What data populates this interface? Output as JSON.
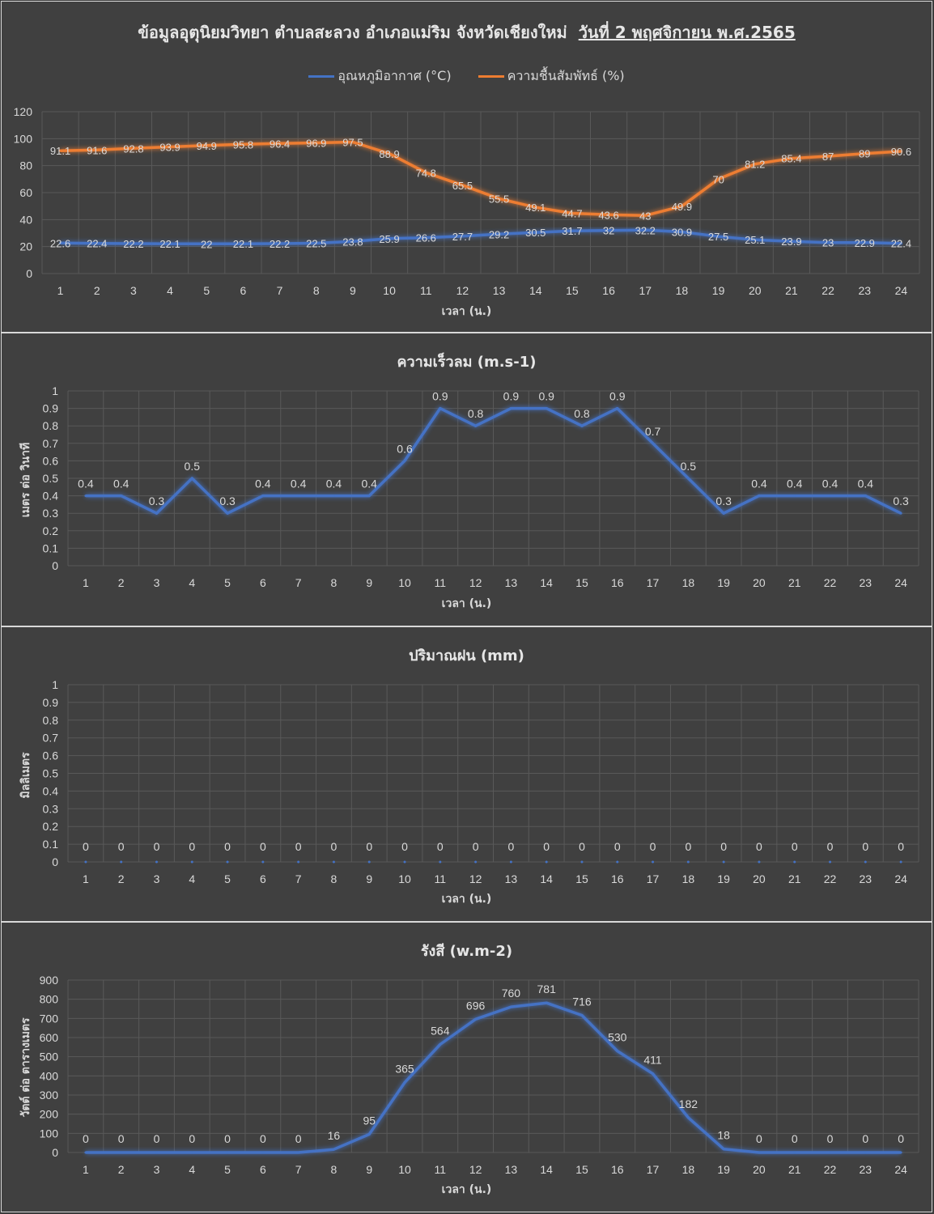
{
  "colors": {
    "background": "#404040",
    "grid": "#595959",
    "text": "#d9d9d9",
    "blue": "#4472c4",
    "orange": "#ed7d31"
  },
  "chart_data": [
    {
      "type": "line",
      "title": "ข้อมูลอุตุนิยมวิทยา  ตำบลสะลวง  อำเภอแม่ริม  จังหวัดเชียงใหม่",
      "title_date": "วันที่ 2 พฤศจิกายน พ.ศ.2565",
      "xlabel": "เวลา (น.)",
      "ylabel": "",
      "ylim": [
        0,
        120
      ],
      "yticks": [
        0,
        20,
        40,
        60,
        80,
        100,
        120
      ],
      "x": [
        1,
        2,
        3,
        4,
        5,
        6,
        7,
        8,
        9,
        10,
        11,
        12,
        13,
        14,
        15,
        16,
        17,
        18,
        19,
        20,
        21,
        22,
        23,
        24
      ],
      "legend": "top",
      "grid": true,
      "series": [
        {
          "name": "อุณหภูมิอากาศ (°C)",
          "color": "#4472c4",
          "values": [
            22.6,
            22.4,
            22.2,
            22.1,
            22,
            22.1,
            22.2,
            22.5,
            23.8,
            25.9,
            26.6,
            27.7,
            29.2,
            30.5,
            31.7,
            32,
            32.2,
            30.9,
            27.5,
            25.1,
            23.9,
            23,
            22.9,
            22.4
          ],
          "labels": [
            "22.6",
            "22.4",
            "22.2",
            "22.1",
            "22",
            "22.1",
            "22.2",
            "22.5",
            "23.8",
            "25.9",
            "26.6",
            "27.7",
            "29.2",
            "30.5",
            "31.7",
            "32",
            "32.2",
            "30.9",
            "27.5",
            "25.1",
            "23.9",
            "23",
            "22.9",
            "22.4"
          ]
        },
        {
          "name": "ความชื้นสัมพัทธ์ (%)",
          "color": "#ed7d31",
          "values": [
            91.1,
            91.6,
            92.8,
            93.9,
            94.9,
            95.8,
            96.4,
            96.9,
            97.5,
            88.9,
            74.8,
            65.5,
            55.5,
            49.1,
            44.7,
            43.6,
            43,
            49.9,
            70,
            81.2,
            85.4,
            87,
            89,
            90.6
          ],
          "labels": [
            "91.1",
            "91.6",
            "92.8",
            "93.9",
            "94.9",
            "95.8",
            "96.4",
            "96.9",
            "97.5",
            "88.9",
            "74.8",
            "65.5",
            "55.5",
            "49.1",
            "44.7",
            "43.6",
            "43",
            "49.9",
            "70",
            "81.2",
            "85.4",
            "87",
            "89",
            "90.6"
          ]
        }
      ]
    },
    {
      "type": "line",
      "title": "ความเร็วลม (m.s-1)",
      "xlabel": "เวลา (น.)",
      "ylabel": "เมตร ต่อ วินาที",
      "ylim": [
        0,
        1
      ],
      "yticks": [
        "0",
        "0.1",
        "0.2",
        "0.3",
        "0.4",
        "0.5",
        "0.6",
        "0.7",
        "0.8",
        "0.9",
        "1"
      ],
      "x": [
        1,
        2,
        3,
        4,
        5,
        6,
        7,
        8,
        9,
        10,
        11,
        12,
        13,
        14,
        15,
        16,
        17,
        18,
        19,
        20,
        21,
        22,
        23,
        24
      ],
      "grid": true,
      "series": [
        {
          "color": "#4472c4",
          "values": [
            0.4,
            0.4,
            0.3,
            0.5,
            0.3,
            0.4,
            0.4,
            0.4,
            0.4,
            0.6,
            0.9,
            0.8,
            0.9,
            0.9,
            0.8,
            0.9,
            0.7,
            0.5,
            0.3,
            0.4,
            0.4,
            0.4,
            0.4,
            0.3
          ],
          "labels": [
            "0.4",
            "0.4",
            "0.3",
            "0.5",
            "0.3",
            "0.4",
            "0.4",
            "0.4",
            "0.4",
            "0.6",
            "0.9",
            "0.8",
            "0.9",
            "0.9",
            "0.8",
            "0.9",
            "0.7",
            "0.5",
            "0.3",
            "0.4",
            "0.4",
            "0.4",
            "0.4",
            "0.3"
          ]
        }
      ]
    },
    {
      "type": "line",
      "title": "ปริมาณฝน (mm)",
      "xlabel": "เวลา (น.)",
      "ylabel": "มิลลิเมตร",
      "ylim": [
        0,
        1
      ],
      "yticks": [
        "0",
        "0.1",
        "0.2",
        "0.3",
        "0.4",
        "0.5",
        "0.6",
        "0.7",
        "0.8",
        "0.9",
        "1"
      ],
      "x": [
        1,
        2,
        3,
        4,
        5,
        6,
        7,
        8,
        9,
        10,
        11,
        12,
        13,
        14,
        15,
        16,
        17,
        18,
        19,
        20,
        21,
        22,
        23,
        24
      ],
      "grid": true,
      "series": [
        {
          "color": "#4472c4",
          "values": [
            0,
            0,
            0,
            0,
            0,
            0,
            0,
            0,
            0,
            0,
            0,
            0,
            0,
            0,
            0,
            0,
            0,
            0,
            0,
            0,
            0,
            0,
            0,
            0
          ],
          "labels": [
            "0",
            "0",
            "0",
            "0",
            "0",
            "0",
            "0",
            "0",
            "0",
            "0",
            "0",
            "0",
            "0",
            "0",
            "0",
            "0",
            "0",
            "0",
            "0",
            "0",
            "0",
            "0",
            "0",
            "0"
          ]
        }
      ]
    },
    {
      "type": "line",
      "title": "รังสี (w.m-2)",
      "xlabel": "เวลา (น.)",
      "ylabel": "วัตต์ ต่อ ตารางเมตร",
      "ylim": [
        0,
        900
      ],
      "yticks": [
        "0",
        "100",
        "200",
        "300",
        "400",
        "500",
        "600",
        "700",
        "800",
        "900"
      ],
      "x": [
        1,
        2,
        3,
        4,
        5,
        6,
        7,
        8,
        9,
        10,
        11,
        12,
        13,
        14,
        15,
        16,
        17,
        18,
        19,
        20,
        21,
        22,
        23,
        24
      ],
      "grid": true,
      "series": [
        {
          "color": "#4472c4",
          "values": [
            0,
            0,
            0,
            0,
            0,
            0,
            0,
            16,
            95,
            365,
            564,
            696,
            760,
            781,
            716,
            530,
            411,
            182,
            18,
            0,
            0,
            0,
            0,
            0
          ],
          "labels": [
            "0",
            "0",
            "0",
            "0",
            "0",
            "0",
            "0",
            "16",
            "95",
            "365",
            "564",
            "696",
            "760",
            "781",
            "716",
            "530",
            "411",
            "182",
            "18",
            "0",
            "0",
            "0",
            "0",
            "0"
          ]
        }
      ]
    }
  ]
}
